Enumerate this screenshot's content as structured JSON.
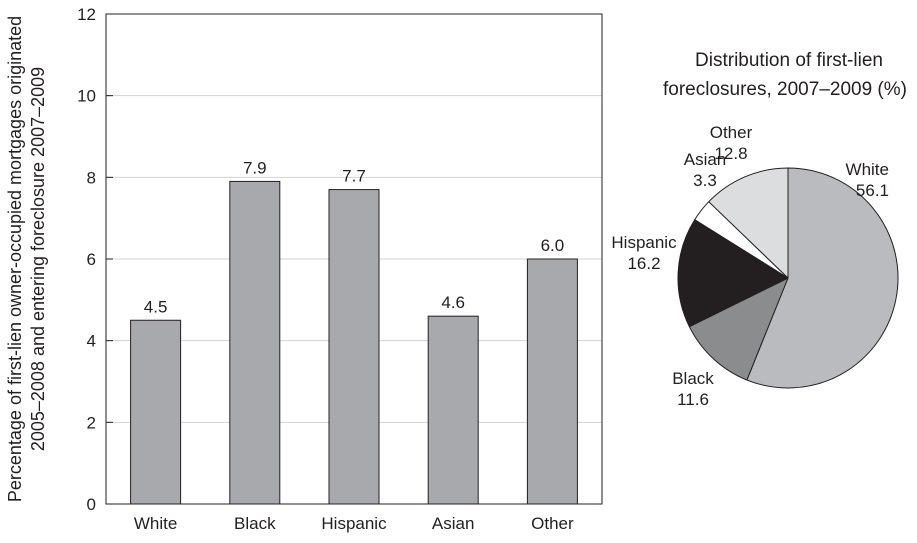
{
  "chart_data": [
    {
      "type": "bar",
      "categories": [
        "White",
        "Black",
        "Hispanic",
        "Asian",
        "Other"
      ],
      "values": [
        4.5,
        7.9,
        7.7,
        4.6,
        6.0
      ],
      "data_labels": [
        "4.5",
        "7.9",
        "7.7",
        "4.6",
        "6.0"
      ],
      "ylabel_lines": [
        "Percentage of first-lien owner-occupied mortgages originated",
        "2005–2008 and entering foreclosure 2007–2009"
      ],
      "xlabel": "",
      "ylim": [
        0,
        12
      ],
      "yticks": [
        0,
        2,
        4,
        6,
        8,
        10,
        12
      ],
      "grid": true,
      "bar_color": "#a7a9ac"
    },
    {
      "type": "pie",
      "title_lines": [
        "Distribution of first-lien",
        "foreclosures, 2007–2009 (%)"
      ],
      "slices": [
        {
          "label": "White",
          "value": 56.1,
          "value_text": "56.1",
          "color": "#b9bbbe"
        },
        {
          "label": "Black",
          "value": 11.6,
          "value_text": "11.6",
          "color": "#8a8c8e"
        },
        {
          "label": "Hispanic",
          "value": 16.2,
          "value_text": "16.2",
          "color": "#231f20"
        },
        {
          "label": "Asian",
          "value": 3.3,
          "value_text": "3.3",
          "color": "#ffffff"
        },
        {
          "label": "Other",
          "value": 12.8,
          "value_text": "12.8",
          "color": "#dcdddf"
        }
      ],
      "start": "12 o'clock, clockwise"
    }
  ]
}
